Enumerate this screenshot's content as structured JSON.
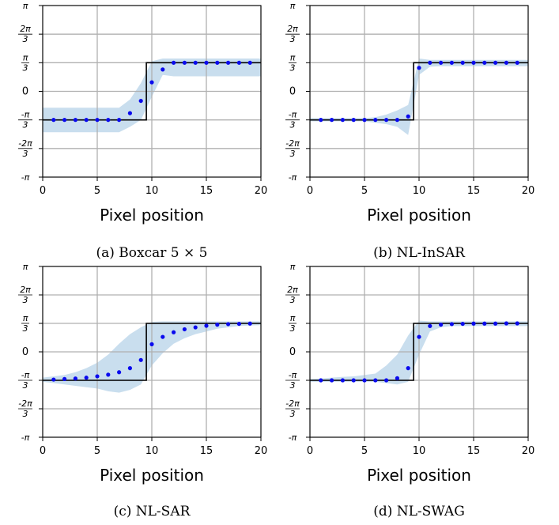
{
  "colors": {
    "band": "#c6dced",
    "dots": "#0a0aee",
    "truth": "#000000",
    "grid": "#b0b0b0"
  },
  "shared": {
    "x_ticks": [
      "0",
      "5",
      "10",
      "15",
      "20"
    ],
    "y_ticks": [
      {
        "value": 3.14159,
        "num": "π",
        "den": ""
      },
      {
        "value": 2.0944,
        "num": "2π",
        "den": "3"
      },
      {
        "value": 1.0472,
        "num": "π",
        "den": "3"
      },
      {
        "value": 0,
        "num": "0",
        "den": ""
      },
      {
        "value": -1.0472,
        "num": "-π",
        "den": "3"
      },
      {
        "value": -2.0944,
        "num": "-2π",
        "den": "3"
      },
      {
        "value": -3.14159,
        "num": "-π",
        "den": ""
      }
    ]
  },
  "chart_data": [
    {
      "type": "scatter",
      "caption": "(a) Boxcar 5 × 5",
      "xlabel": "Pixel position",
      "xlim": [
        0,
        20
      ],
      "ylim": [
        -3.14159,
        3.14159
      ],
      "grid": true,
      "truth": {
        "x": [
          0,
          9.5,
          9.5,
          20
        ],
        "y": [
          -1.0472,
          -1.0472,
          1.0472,
          1.0472
        ]
      },
      "points": {
        "x": [
          1,
          2,
          3,
          4,
          5,
          6,
          7,
          8,
          9,
          10,
          11,
          12,
          13,
          14,
          15,
          16,
          17,
          18,
          19
        ],
        "y": [
          -1.047,
          -1.047,
          -1.047,
          -1.047,
          -1.047,
          -1.047,
          -1.047,
          -0.8,
          -0.35,
          0.33,
          0.8,
          1.047,
          1.047,
          1.047,
          1.047,
          1.047,
          1.047,
          1.047,
          1.047
        ]
      },
      "band": {
        "x": [
          0,
          1,
          2,
          3,
          4,
          5,
          6,
          7,
          8,
          9,
          10,
          11,
          12,
          13,
          14,
          15,
          16,
          17,
          18,
          19,
          20
        ],
        "lower": [
          -1.5,
          -1.5,
          -1.5,
          -1.5,
          -1.5,
          -1.5,
          -1.5,
          -1.5,
          -1.3,
          -1.05,
          -0.2,
          0.6,
          0.55,
          0.55,
          0.55,
          0.55,
          0.55,
          0.55,
          0.55,
          0.55,
          0.55
        ],
        "upper": [
          -0.6,
          -0.6,
          -0.6,
          -0.6,
          -0.6,
          -0.6,
          -0.6,
          -0.6,
          -0.3,
          0.3,
          1.1,
          1.2,
          1.2,
          1.2,
          1.2,
          1.2,
          1.2,
          1.2,
          1.2,
          1.2,
          1.2
        ]
      }
    },
    {
      "type": "scatter",
      "caption": "(b) NL-InSAR",
      "xlabel": "Pixel position",
      "xlim": [
        0,
        20
      ],
      "ylim": [
        -3.14159,
        3.14159
      ],
      "grid": true,
      "truth": {
        "x": [
          0,
          9.5,
          9.5,
          20
        ],
        "y": [
          -1.0472,
          -1.0472,
          1.0472,
          1.0472
        ]
      },
      "points": {
        "x": [
          1,
          2,
          3,
          4,
          5,
          6,
          7,
          8,
          9,
          10,
          11,
          12,
          13,
          14,
          15,
          16,
          17,
          18,
          19
        ],
        "y": [
          -1.047,
          -1.047,
          -1.047,
          -1.047,
          -1.047,
          -1.047,
          -1.047,
          -1.047,
          -0.92,
          0.86,
          1.047,
          1.047,
          1.047,
          1.047,
          1.047,
          1.047,
          1.047,
          1.047,
          1.047
        ]
      },
      "band": {
        "x": [
          0,
          1,
          2,
          3,
          4,
          5,
          6,
          7,
          8,
          9,
          10,
          11,
          12,
          13,
          14,
          15,
          16,
          17,
          18,
          19,
          20
        ],
        "lower": [
          -1.1,
          -1.1,
          -1.1,
          -1.1,
          -1.1,
          -1.1,
          -1.15,
          -1.2,
          -1.3,
          -1.6,
          0.6,
          0.9,
          0.92,
          0.92,
          0.92,
          0.92,
          0.92,
          0.92,
          0.92,
          0.92,
          0.92
        ],
        "upper": [
          -0.98,
          -0.98,
          -0.98,
          -0.98,
          -0.98,
          -0.98,
          -0.95,
          -0.85,
          -0.7,
          -0.5,
          1.2,
          1.15,
          1.15,
          1.15,
          1.15,
          1.15,
          1.15,
          1.15,
          1.15,
          1.15,
          1.15
        ]
      }
    },
    {
      "type": "scatter",
      "caption": "(c) NL-SAR",
      "xlabel": "Pixel position",
      "xlim": [
        0,
        20
      ],
      "ylim": [
        -3.14159,
        3.14159
      ],
      "grid": true,
      "truth": {
        "x": [
          0,
          9.5,
          9.5,
          20
        ],
        "y": [
          -1.0472,
          -1.0472,
          1.0472,
          1.0472
        ]
      },
      "points": {
        "x": [
          1,
          2,
          3,
          4,
          5,
          6,
          7,
          8,
          9,
          10,
          11,
          12,
          13,
          14,
          15,
          16,
          17,
          18,
          19
        ],
        "y": [
          -1.02,
          -1.0,
          -0.98,
          -0.95,
          -0.9,
          -0.84,
          -0.75,
          -0.6,
          -0.3,
          0.28,
          0.55,
          0.72,
          0.83,
          0.9,
          0.96,
          1.0,
          1.02,
          1.03,
          1.04
        ]
      },
      "band": {
        "x": [
          0,
          1,
          2,
          3,
          4,
          5,
          6,
          7,
          8,
          9,
          10,
          11,
          12,
          13,
          14,
          15,
          16,
          17,
          18,
          19,
          20
        ],
        "lower": [
          -1.1,
          -1.15,
          -1.2,
          -1.25,
          -1.3,
          -1.35,
          -1.45,
          -1.5,
          -1.4,
          -1.2,
          -0.5,
          -0.05,
          0.3,
          0.5,
          0.65,
          0.75,
          0.85,
          0.9,
          0.95,
          0.97,
          0.98
        ],
        "upper": [
          -0.95,
          -0.9,
          -0.85,
          -0.75,
          -0.6,
          -0.4,
          -0.1,
          0.3,
          0.65,
          0.9,
          1.1,
          1.12,
          1.12,
          1.12,
          1.12,
          1.12,
          1.12,
          1.12,
          1.12,
          1.12,
          1.12
        ]
      }
    },
    {
      "type": "scatter",
      "caption": "(d) NL-SWAG",
      "xlabel": "Pixel position",
      "xlim": [
        0,
        20
      ],
      "ylim": [
        -3.14159,
        3.14159
      ],
      "grid": true,
      "truth": {
        "x": [
          0,
          9.5,
          9.5,
          20
        ],
        "y": [
          -1.0472,
          -1.0472,
          1.0472,
          1.0472
        ]
      },
      "points": {
        "x": [
          1,
          2,
          3,
          4,
          5,
          6,
          7,
          8,
          9,
          10,
          11,
          12,
          13,
          14,
          15,
          16,
          17,
          18,
          19
        ],
        "y": [
          -1.047,
          -1.047,
          -1.047,
          -1.047,
          -1.047,
          -1.047,
          -1.047,
          -0.97,
          -0.6,
          0.55,
          0.95,
          1.0,
          1.02,
          1.03,
          1.04,
          1.04,
          1.04,
          1.047,
          1.047
        ]
      },
      "band": {
        "x": [
          0,
          1,
          2,
          3,
          4,
          5,
          6,
          7,
          8,
          9,
          10,
          11,
          12,
          13,
          14,
          15,
          16,
          17,
          18,
          19,
          20
        ],
        "lower": [
          -1.1,
          -1.1,
          -1.1,
          -1.1,
          -1.1,
          -1.1,
          -1.1,
          -1.15,
          -1.2,
          -1.1,
          -0.1,
          0.75,
          0.9,
          0.95,
          0.95,
          0.95,
          0.95,
          0.95,
          0.95,
          0.95,
          0.95
        ],
        "upper": [
          -1.0,
          -0.98,
          -0.95,
          -0.92,
          -0.9,
          -0.85,
          -0.8,
          -0.5,
          -0.1,
          0.6,
          1.15,
          1.12,
          1.12,
          1.12,
          1.12,
          1.12,
          1.12,
          1.12,
          1.12,
          1.12,
          1.12
        ]
      }
    }
  ]
}
